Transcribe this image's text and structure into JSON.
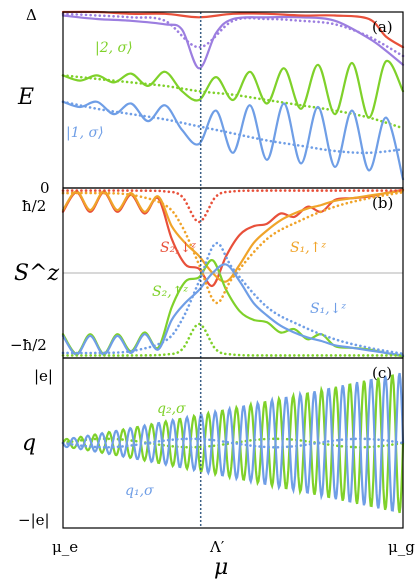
{
  "colors": {
    "green": "#7fd12a",
    "blue": "#6f9ee6",
    "red": "#e8503a",
    "orange": "#f0a42a",
    "purple": "#9c7ee0",
    "cyan": "#3fc7c7",
    "marker": "#3a5f86"
  },
  "x_ticks": [
    "μ_e",
    "Λ′",
    "μ_g"
  ],
  "xlabel": "μ",
  "chart_data": [
    {
      "type": "line",
      "panel": "(a)",
      "ylabel": "E",
      "yticks": [
        "0",
        "Δ"
      ],
      "ylim": [
        0,
        1
      ],
      "xlim": [
        0,
        1
      ],
      "vline_x": 0.405,
      "annotations": [
        {
          "key": "a_green",
          "text": "|2, σ⟩",
          "color": "green"
        },
        {
          "key": "a_blue",
          "text": "|1, σ⟩",
          "color": "blue"
        }
      ],
      "series": [
        {
          "name": "|2, σ⟩ solid",
          "color": "green",
          "style": "solid",
          "x": [
            0,
            0.05,
            0.1,
            0.15,
            0.2,
            0.25,
            0.3,
            0.35,
            0.4,
            0.45,
            0.5,
            0.55,
            0.6,
            0.65,
            0.7,
            0.75,
            0.8,
            0.85,
            0.9,
            0.95,
            1
          ],
          "y": [
            0.64,
            0.61,
            0.64,
            0.6,
            0.65,
            0.58,
            0.66,
            0.55,
            0.5,
            0.63,
            0.5,
            0.66,
            0.48,
            0.68,
            0.45,
            0.7,
            0.42,
            0.71,
            0.4,
            0.72,
            0.55
          ]
        },
        {
          "name": "|2, σ⟩ dotted",
          "color": "green",
          "style": "dotted",
          "x": [
            0,
            0.1,
            0.2,
            0.3,
            0.4,
            0.5,
            0.6,
            0.7,
            0.8,
            0.9,
            1
          ],
          "y": [
            0.64,
            0.62,
            0.6,
            0.58,
            0.55,
            0.53,
            0.5,
            0.47,
            0.44,
            0.4,
            0.34
          ]
        },
        {
          "name": "|1, σ⟩ solid",
          "color": "blue",
          "style": "solid",
          "x": [
            0,
            0.05,
            0.1,
            0.15,
            0.2,
            0.25,
            0.3,
            0.35,
            0.4,
            0.45,
            0.5,
            0.55,
            0.6,
            0.65,
            0.7,
            0.75,
            0.8,
            0.85,
            0.9,
            0.95,
            1
          ],
          "y": [
            0.49,
            0.46,
            0.49,
            0.42,
            0.48,
            0.38,
            0.47,
            0.33,
            0.25,
            0.44,
            0.2,
            0.47,
            0.16,
            0.48,
            0.14,
            0.46,
            0.12,
            0.44,
            0.1,
            0.4,
            0.05
          ]
        },
        {
          "name": "|1, σ⟩ dotted",
          "color": "blue",
          "style": "dotted",
          "x": [
            0,
            0.1,
            0.2,
            0.3,
            0.4,
            0.5,
            0.6,
            0.7,
            0.8,
            0.9,
            1
          ],
          "y": [
            0.49,
            0.45,
            0.42,
            0.39,
            0.35,
            0.31,
            0.27,
            0.24,
            0.21,
            0.2,
            0.22
          ]
        },
        {
          "name": "upper purple solid",
          "color": "purple",
          "style": "solid",
          "x": [
            0,
            0.1,
            0.2,
            0.3,
            0.35,
            0.4,
            0.45,
            0.5,
            0.6,
            0.7,
            0.8,
            0.9,
            0.95,
            1
          ],
          "y": [
            0.98,
            0.96,
            0.95,
            0.93,
            0.9,
            0.68,
            0.88,
            0.96,
            0.97,
            0.97,
            0.95,
            0.85,
            0.78,
            0.7
          ]
        },
        {
          "name": "upper purple dotted",
          "color": "purple",
          "style": "dotted",
          "x": [
            0,
            0.1,
            0.2,
            0.3,
            0.4,
            0.5,
            0.6,
            0.7,
            0.8,
            0.9,
            1
          ],
          "y": [
            0.99,
            0.98,
            0.97,
            0.95,
            0.8,
            0.95,
            0.96,
            0.95,
            0.93,
            0.86,
            0.75
          ]
        },
        {
          "name": "upper red solid",
          "color": "red",
          "style": "solid",
          "x": [
            0,
            0.1,
            0.2,
            0.3,
            0.4,
            0.5,
            0.6,
            0.7,
            0.8,
            0.9,
            0.95,
            1
          ],
          "y": [
            1.0,
            1.0,
            0.99,
            0.99,
            0.97,
            0.99,
            0.99,
            0.98,
            0.98,
            0.96,
            0.86,
            0.8
          ]
        }
      ]
    },
    {
      "type": "line",
      "panel": "(b)",
      "ylabel": "S^z",
      "yticks": [
        "ħ/2",
        "−ħ/2"
      ],
      "ylim": [
        -1,
        1
      ],
      "xlim": [
        0,
        1
      ],
      "zero_line": true,
      "annotations": [
        {
          "key": "b_red",
          "text": "S₂,↓ᶻ",
          "color": "red"
        },
        {
          "key": "b_orange",
          "text": "S₁,↑ᶻ",
          "color": "orange"
        },
        {
          "key": "b_green",
          "text": "S₂,↑ᶻ",
          "color": "green"
        },
        {
          "key": "b_blue",
          "text": "S₁,↓ᶻ",
          "color": "blue"
        }
      ],
      "series": [
        {
          "name": "S2down solid",
          "color": "red",
          "style": "solid",
          "x": [
            0,
            0.04,
            0.08,
            0.12,
            0.16,
            0.2,
            0.24,
            0.28,
            0.32,
            0.36,
            0.4,
            0.44,
            0.48,
            0.52,
            0.56,
            0.6,
            0.64,
            0.68,
            0.72,
            0.76,
            0.8,
            0.85,
            0.9,
            0.95,
            1
          ],
          "y": [
            0.72,
            0.95,
            0.72,
            0.95,
            0.72,
            0.92,
            0.7,
            0.88,
            0.4,
            0.1,
            0.05,
            -0.15,
            0.2,
            0.45,
            0.55,
            0.58,
            0.7,
            0.66,
            0.78,
            0.72,
            0.86,
            0.88,
            0.9,
            0.94,
            0.98
          ]
        },
        {
          "name": "S1up solid",
          "color": "orange",
          "style": "solid",
          "x": [
            0,
            0.04,
            0.08,
            0.12,
            0.16,
            0.2,
            0.24,
            0.28,
            0.32,
            0.36,
            0.4,
            0.44,
            0.48,
            0.52,
            0.56,
            0.6,
            0.64,
            0.68,
            0.72,
            0.76,
            0.8,
            0.85,
            0.9,
            0.95,
            1
          ],
          "y": [
            0.74,
            0.96,
            0.74,
            0.96,
            0.74,
            0.94,
            0.72,
            0.9,
            0.55,
            0.35,
            0.2,
            0.0,
            -0.1,
            0.1,
            0.35,
            0.5,
            0.62,
            0.7,
            0.76,
            0.8,
            0.85,
            0.88,
            0.91,
            0.94,
            0.97
          ]
        },
        {
          "name": "S2up solid",
          "color": "green",
          "style": "solid",
          "x": [
            0,
            0.04,
            0.08,
            0.12,
            0.16,
            0.2,
            0.24,
            0.28,
            0.32,
            0.36,
            0.4,
            0.44,
            0.48,
            0.52,
            0.56,
            0.6,
            0.64,
            0.68,
            0.72,
            0.76,
            0.8,
            0.85,
            0.9,
            0.95,
            1
          ],
          "y": [
            -0.72,
            -0.95,
            -0.72,
            -0.95,
            -0.72,
            -0.92,
            -0.7,
            -0.88,
            -0.4,
            -0.1,
            -0.05,
            0.15,
            -0.2,
            -0.45,
            -0.55,
            -0.58,
            -0.7,
            -0.66,
            -0.78,
            -0.72,
            -0.86,
            -0.88,
            -0.9,
            -0.94,
            -0.98
          ]
        },
        {
          "name": "S1down solid",
          "color": "blue",
          "style": "solid",
          "x": [
            0,
            0.04,
            0.08,
            0.12,
            0.16,
            0.2,
            0.24,
            0.28,
            0.32,
            0.36,
            0.4,
            0.44,
            0.48,
            0.52,
            0.56,
            0.6,
            0.64,
            0.68,
            0.72,
            0.76,
            0.8,
            0.85,
            0.9,
            0.95,
            1
          ],
          "y": [
            -0.74,
            -0.96,
            -0.74,
            -0.96,
            -0.74,
            -0.94,
            -0.72,
            -0.9,
            -0.55,
            -0.35,
            -0.2,
            0.0,
            0.1,
            -0.1,
            -0.35,
            -0.5,
            -0.62,
            -0.7,
            -0.76,
            -0.8,
            -0.85,
            -0.88,
            -0.91,
            -0.94,
            -0.97
          ]
        },
        {
          "name": "red dotted",
          "color": "red",
          "style": "dotted",
          "x": [
            0,
            0.1,
            0.2,
            0.3,
            0.35,
            0.4,
            0.45,
            0.5,
            0.6,
            0.7,
            0.8,
            0.9,
            1
          ],
          "y": [
            0.97,
            0.97,
            0.97,
            0.96,
            0.9,
            0.6,
            0.9,
            0.96,
            0.97,
            0.97,
            0.97,
            0.97,
            0.97
          ]
        },
        {
          "name": "orange dotted",
          "color": "orange",
          "style": "dotted",
          "x": [
            0,
            0.1,
            0.2,
            0.3,
            0.35,
            0.4,
            0.45,
            0.5,
            0.6,
            0.7,
            0.8,
            0.9,
            1
          ],
          "y": [
            0.94,
            0.94,
            0.92,
            0.8,
            0.55,
            0.1,
            -0.35,
            -0.05,
            0.4,
            0.62,
            0.78,
            0.88,
            0.95
          ]
        },
        {
          "name": "green dotted",
          "color": "green",
          "style": "dotted",
          "x": [
            0,
            0.1,
            0.2,
            0.3,
            0.35,
            0.4,
            0.45,
            0.5,
            0.6,
            0.7,
            0.8,
            0.9,
            1
          ],
          "y": [
            -0.97,
            -0.97,
            -0.97,
            -0.96,
            -0.9,
            -0.6,
            -0.9,
            -0.96,
            -0.97,
            -0.97,
            -0.97,
            -0.97,
            -0.97
          ]
        },
        {
          "name": "blue dotted",
          "color": "blue",
          "style": "dotted",
          "x": [
            0,
            0.1,
            0.2,
            0.3,
            0.35,
            0.4,
            0.45,
            0.5,
            0.6,
            0.7,
            0.8,
            0.9,
            1
          ],
          "y": [
            -0.94,
            -0.94,
            -0.92,
            -0.8,
            -0.55,
            -0.1,
            0.35,
            0.05,
            -0.4,
            -0.62,
            -0.78,
            -0.88,
            -0.95
          ]
        }
      ]
    },
    {
      "type": "line",
      "panel": "(c)",
      "ylabel": "q",
      "yticks": [
        "|e|",
        "−|e|"
      ],
      "ylim": [
        -1,
        1
      ],
      "xlim": [
        0,
        1
      ],
      "annotations": [
        {
          "key": "c_green",
          "text": "q₂,σ",
          "color": "green"
        },
        {
          "key": "c_blue",
          "text": "q₁,σ",
          "color": "blue"
        }
      ],
      "oscillation": {
        "periods": 24,
        "amp_start": 0.05,
        "amp_end": 1.0
      }
    }
  ]
}
